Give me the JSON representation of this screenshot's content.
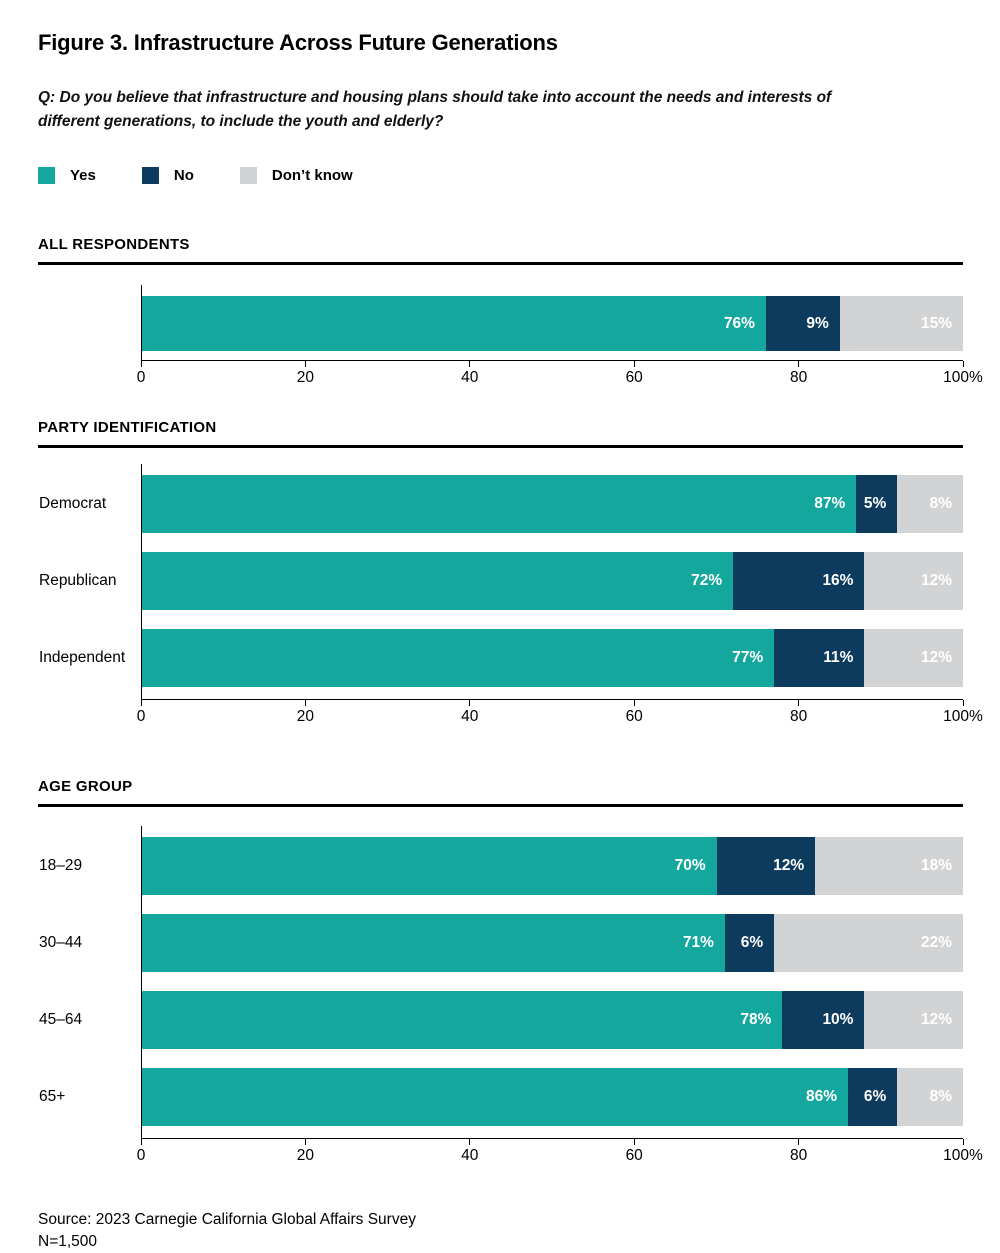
{
  "figure": {
    "title": "Figure 3. Infrastructure Across Future Generations",
    "question": "Q: Do you believe that infrastructure and housing plans should take into account the needs and interests of different generations, to include the youth and elderly?",
    "source_line": "Source: 2023 Carnegie California Global Affairs Survey",
    "sample_size": "N=1,500"
  },
  "colors": {
    "yes": "#14A79D",
    "no": "#0D3B5E",
    "dont_know": "#D2D3D5",
    "rule": "#000000",
    "bar_label_text": "#FFFFFF"
  },
  "legend": [
    {
      "label": "Yes",
      "color": "#14A79D"
    },
    {
      "label": "No",
      "color": "#0D3B5E"
    },
    {
      "label": "Don’t know",
      "color": "#D2D3D5"
    }
  ],
  "axis": {
    "min": 0,
    "max": 100,
    "tick_positions": [
      0,
      20,
      40,
      60,
      80,
      100
    ],
    "tick_labels": [
      "0",
      "20",
      "40",
      "60",
      "80",
      "100%"
    ]
  },
  "chart_data": [
    {
      "type": "bar",
      "stacked": true,
      "orientation": "horizontal",
      "section": "ALL RESPONDENTS",
      "categories": [
        ""
      ],
      "series": [
        {
          "name": "Yes",
          "color": "#14A79D",
          "values": [
            76
          ]
        },
        {
          "name": "No",
          "color": "#0D3B5E",
          "values": [
            9
          ]
        },
        {
          "name": "Don’t know",
          "color": "#D2D3D5",
          "values": [
            15
          ]
        }
      ],
      "xlim": [
        0,
        100
      ],
      "value_suffix": "%"
    },
    {
      "type": "bar",
      "stacked": true,
      "orientation": "horizontal",
      "section": "PARTY IDENTIFICATION",
      "categories": [
        "Democrat",
        "Republican",
        "Independent"
      ],
      "series": [
        {
          "name": "Yes",
          "color": "#14A79D",
          "values": [
            87,
            72,
            77
          ]
        },
        {
          "name": "No",
          "color": "#0D3B5E",
          "values": [
            5,
            16,
            11
          ]
        },
        {
          "name": "Don’t know",
          "color": "#D2D3D5",
          "values": [
            8,
            12,
            12
          ]
        }
      ],
      "xlim": [
        0,
        100
      ],
      "value_suffix": "%"
    },
    {
      "type": "bar",
      "stacked": true,
      "orientation": "horizontal",
      "section": "AGE GROUP",
      "categories": [
        "18–29",
        "30–44",
        "45–64",
        "65+"
      ],
      "series": [
        {
          "name": "Yes",
          "color": "#14A79D",
          "values": [
            70,
            71,
            78,
            86
          ]
        },
        {
          "name": "No",
          "color": "#0D3B5E",
          "values": [
            12,
            6,
            10,
            6
          ]
        },
        {
          "name": "Don’t know",
          "color": "#D2D3D5",
          "values": [
            18,
            22,
            12,
            8
          ]
        }
      ],
      "xlim": [
        0,
        100
      ],
      "value_suffix": "%"
    }
  ]
}
